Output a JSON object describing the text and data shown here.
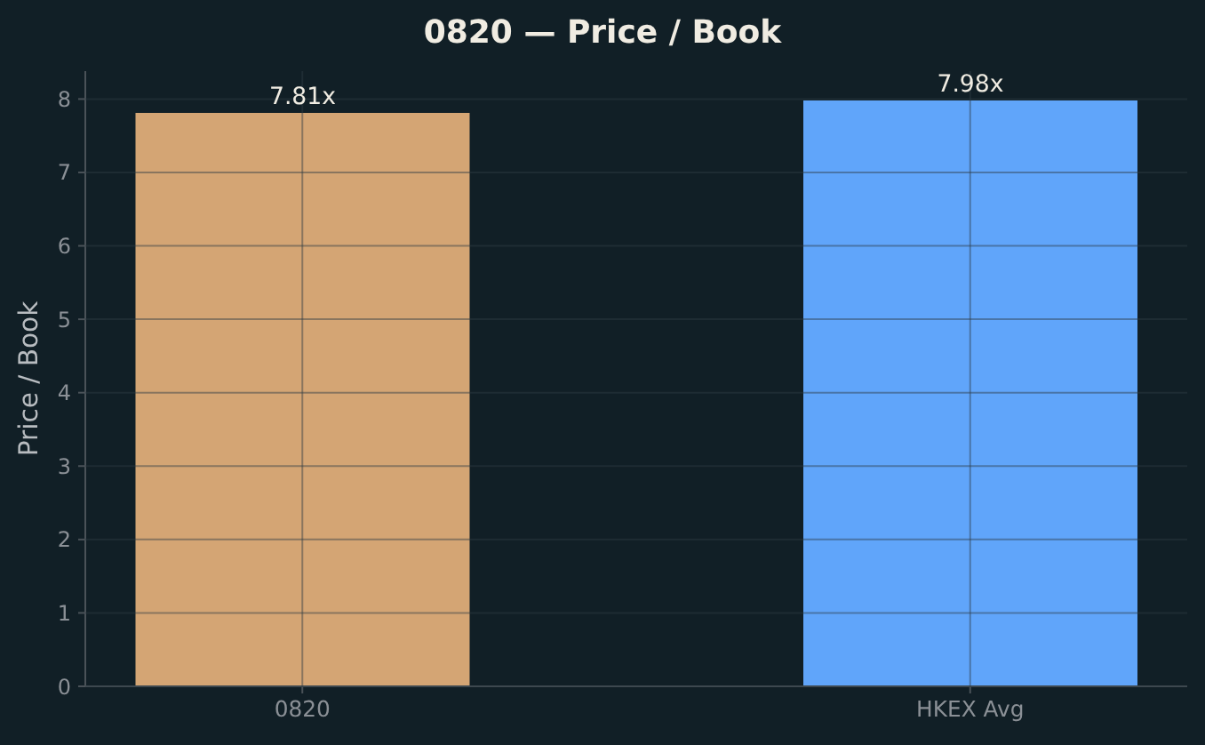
{
  "chart_data": {
    "type": "bar",
    "title": "0820 — Price / Book",
    "ylabel": "Price / Book",
    "categories": [
      "0820",
      "HKEX Avg"
    ],
    "values": [
      7.81,
      7.98
    ],
    "colors": [
      "#d4a574",
      "#60a5fa"
    ],
    "value_labels": [
      "7.81x",
      "7.98x"
    ],
    "ylim": [
      0,
      8.38
    ],
    "yticks": [
      0,
      1,
      2,
      3,
      4,
      5,
      6,
      7,
      8
    ],
    "grid": true
  }
}
